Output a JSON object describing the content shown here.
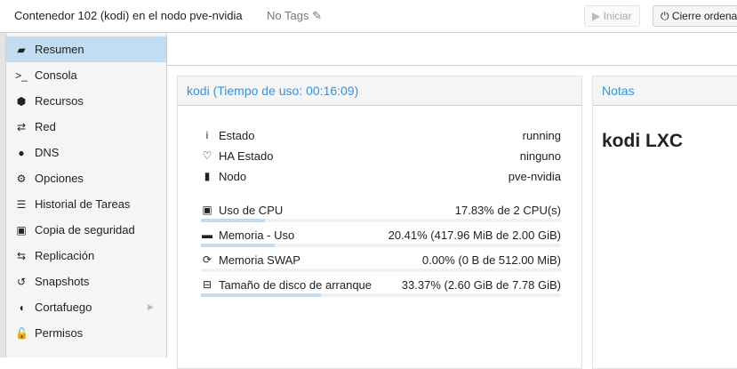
{
  "header": {
    "title": "Contenedor 102 (kodi) en el nodo pve-nvidia",
    "tags": "No Tags",
    "start_label": "Iniciar",
    "shutdown_label": "Cierre ordena"
  },
  "sidebar": {
    "items": [
      {
        "label": "Resumen",
        "icon": "book-icon",
        "glyph": "▰"
      },
      {
        "label": "Consola",
        "icon": "terminal-icon",
        "glyph": ">_"
      },
      {
        "label": "Recursos",
        "icon": "cube-icon",
        "glyph": "⬢"
      },
      {
        "label": "Red",
        "icon": "exchange-icon",
        "glyph": "⇄"
      },
      {
        "label": "DNS",
        "icon": "globe-icon",
        "glyph": "●"
      },
      {
        "label": "Opciones",
        "icon": "gear-icon",
        "glyph": "⚙"
      },
      {
        "label": "Historial de Tareas",
        "icon": "list-icon",
        "glyph": "☰"
      },
      {
        "label": "Copia de seguridad",
        "icon": "floppy-icon",
        "glyph": "▣"
      },
      {
        "label": "Replicación",
        "icon": "retweet-icon",
        "glyph": "⇆"
      },
      {
        "label": "Snapshots",
        "icon": "history-icon",
        "glyph": "↺"
      },
      {
        "label": "Cortafuego",
        "icon": "shield-icon",
        "glyph": "◖"
      },
      {
        "label": "Permisos",
        "icon": "unlock-icon",
        "glyph": "🔓"
      }
    ]
  },
  "summary": {
    "title": "kodi (Tiempo de uso: 00:16:09)",
    "status": [
      {
        "label": "Estado",
        "value": "running",
        "glyph": "i"
      },
      {
        "label": "HA Estado",
        "value": "ninguno",
        "glyph": "♡"
      },
      {
        "label": "Nodo",
        "value": "pve-nvidia",
        "glyph": "▮"
      }
    ],
    "usage": [
      {
        "label": "Uso de CPU",
        "value": "17.83% de 2 CPU(s)",
        "fraction": 0.1783,
        "glyph": "▣"
      },
      {
        "label": "Memoria - Uso",
        "value": "20.41% (417.96 MiB de 2.00 GiB)",
        "fraction": 0.2041,
        "glyph": "▬"
      },
      {
        "label": "Memoria SWAP",
        "value": "0.00% (0 B de 512.00 MiB)",
        "fraction": 0,
        "glyph": "⟳"
      },
      {
        "label": "Tamaño de disco de arranque",
        "value": "33.37% (2.60 GiB de 7.78 GiB)",
        "fraction": 0.3337,
        "glyph": "⊟"
      }
    ]
  },
  "notes": {
    "title": "Notas",
    "content": "kodi LXC"
  }
}
